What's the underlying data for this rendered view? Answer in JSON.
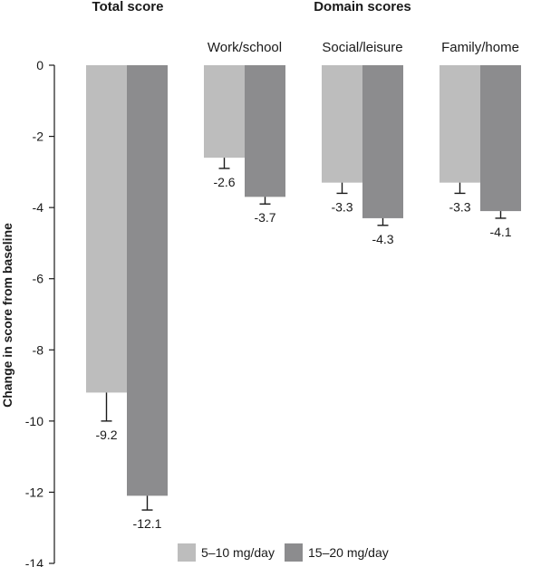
{
  "chart_data": {
    "type": "bar",
    "group_headers": {
      "total": "Total score",
      "domain": "Domain scores"
    },
    "categories": [
      "",
      "Work/school",
      "Social/leisure",
      "Family/home"
    ],
    "series": [
      {
        "name": "5–10 mg/day",
        "color": "#bdbdbd",
        "values": [
          -9.2,
          -2.6,
          -3.3,
          -3.3
        ],
        "labels": [
          "-9.2",
          "-2.6",
          "-3.3",
          "-3.3"
        ],
        "error": [
          0.8,
          0.3,
          0.3,
          0.3
        ]
      },
      {
        "name": "15–20 mg/day",
        "color": "#8c8c8e",
        "values": [
          -12.1,
          -3.7,
          -4.3,
          -4.1
        ],
        "labels": [
          "-12.1",
          "-3.7",
          "-4.3",
          "-4.1"
        ],
        "error": [
          0.4,
          0.2,
          0.2,
          0.2
        ]
      }
    ],
    "ylabel": "Change in score from baseline",
    "ylim": [
      -14,
      0
    ],
    "yticks": [
      0,
      -2,
      -4,
      -6,
      -8,
      -10,
      -12,
      -14
    ],
    "ytick_labels": [
      "0",
      "-2",
      "-4",
      "-6",
      "-8",
      "-10",
      "-12",
      "-14"
    ],
    "grid": false,
    "legend_position": "bottom"
  }
}
